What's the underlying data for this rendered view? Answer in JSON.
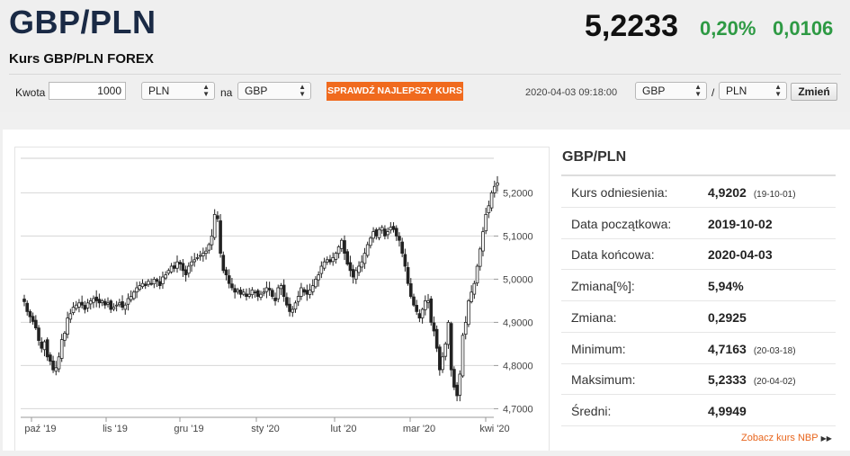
{
  "header": {
    "pair": "GBP/PLN",
    "subtitle": "Kurs GBP/PLN FOREX",
    "price": "5,2233",
    "change_pct": "0,20%",
    "change_abs": "0,0106"
  },
  "toolbar": {
    "amount_label": "Kwota",
    "amount_value": "1000",
    "from_currency": "PLN",
    "to_label": "na",
    "to_currency": "GBP",
    "cta_label": "SPRAWDŹ NAJLEPSZY KURS",
    "timestamp": "2020-04-03 09:18:00",
    "pair_from": "GBP",
    "pair_sep": "/",
    "pair_to": "PLN",
    "change_button": "Zmień"
  },
  "colors": {
    "title": "#1a2a45",
    "positive": "#2e9a44",
    "cta": "#f06a1e",
    "link": "#e8651c"
  },
  "chart_data": {
    "type": "candlestick",
    "x_labels": [
      "paź '19",
      "lis '19",
      "gru '19",
      "sty '20",
      "lut '20",
      "mar '20",
      "kwi '20"
    ],
    "y_ticks": [
      "5,2000",
      "5,1000",
      "5,0000",
      "4,9000",
      "4,8000",
      "4,7000"
    ],
    "y_tick_values": [
      5.2,
      5.1,
      5.0,
      4.9,
      4.8,
      4.7
    ],
    "ylim": [
      4.68,
      5.28
    ],
    "date_range": [
      "2019-10-02",
      "2020-04-03"
    ],
    "grid": true,
    "series": [
      {
        "closes": [
          4.948,
          4.925,
          4.913,
          4.902,
          4.887,
          4.858,
          4.84,
          4.855,
          4.82,
          4.81,
          4.79,
          4.795,
          4.82,
          4.86,
          4.875,
          4.91,
          4.92,
          4.935,
          4.94,
          4.945,
          4.94,
          4.93,
          4.945,
          4.95,
          4.955,
          4.95,
          4.945,
          4.95,
          4.94,
          4.945,
          4.93,
          4.935,
          4.94,
          4.945,
          4.935,
          4.94,
          4.955,
          4.96,
          4.97,
          4.98,
          4.985,
          4.99,
          4.985,
          4.995,
          4.99,
          5.0,
          4.995,
          4.985,
          5.005,
          5.01,
          5.02,
          5.03,
          5.025,
          5.04,
          5.035,
          5.02,
          5.01,
          5.03,
          5.04,
          5.045,
          5.05,
          5.055,
          5.06,
          5.065,
          5.08,
          5.1,
          5.15,
          5.14,
          5.06,
          5.02,
          5.01,
          4.99,
          4.98,
          4.97,
          4.975,
          4.965,
          4.97,
          4.96,
          4.965,
          4.975,
          4.97,
          4.96,
          4.965,
          4.97,
          4.98,
          4.975,
          4.96,
          4.95,
          4.98,
          4.985,
          4.96,
          4.94,
          4.925,
          4.93,
          4.945,
          4.96,
          4.98,
          4.97,
          4.965,
          4.975,
          4.985,
          5.0,
          5.01,
          5.03,
          5.04,
          5.045,
          5.04,
          5.05,
          5.06,
          5.075,
          5.09,
          5.06,
          5.035,
          5.02,
          5.005,
          5.02,
          5.03,
          5.04,
          5.06,
          5.08,
          5.095,
          5.11,
          5.1,
          5.115,
          5.12,
          5.1,
          5.11,
          5.12,
          5.115,
          5.1,
          5.09,
          5.06,
          5.03,
          4.99,
          4.96,
          4.94,
          4.925,
          4.91,
          4.93,
          4.95,
          4.95,
          4.9,
          4.88,
          4.84,
          4.79,
          4.82,
          4.85,
          4.9,
          4.79,
          4.75,
          4.73,
          4.78,
          4.87,
          4.9,
          4.95,
          4.97,
          4.99,
          5.03,
          5.07,
          5.11,
          5.15,
          5.17,
          5.2,
          5.215,
          5.223
        ]
      }
    ]
  },
  "panel": {
    "title": "GBP/PLN",
    "rows": [
      {
        "label": "Kurs odniesienia:",
        "value": "4,9202",
        "date": "(19-10-01)"
      },
      {
        "label": "Data początkowa:",
        "value": "2019-10-02",
        "date": ""
      },
      {
        "label": "Data końcowa:",
        "value": "2020-04-03",
        "date": ""
      },
      {
        "label": "Zmiana[%]:",
        "value": "5,94%",
        "date": ""
      },
      {
        "label": "Zmiana:",
        "value": "0,2925",
        "date": ""
      },
      {
        "label": "Minimum:",
        "value": "4,7163",
        "date": "(20-03-18)"
      },
      {
        "label": "Maksimum:",
        "value": "5,2333",
        "date": "(20-04-02)"
      },
      {
        "label": "Średni:",
        "value": "4,9949",
        "date": ""
      }
    ],
    "link_label": "Zobacz kurs NBP"
  }
}
